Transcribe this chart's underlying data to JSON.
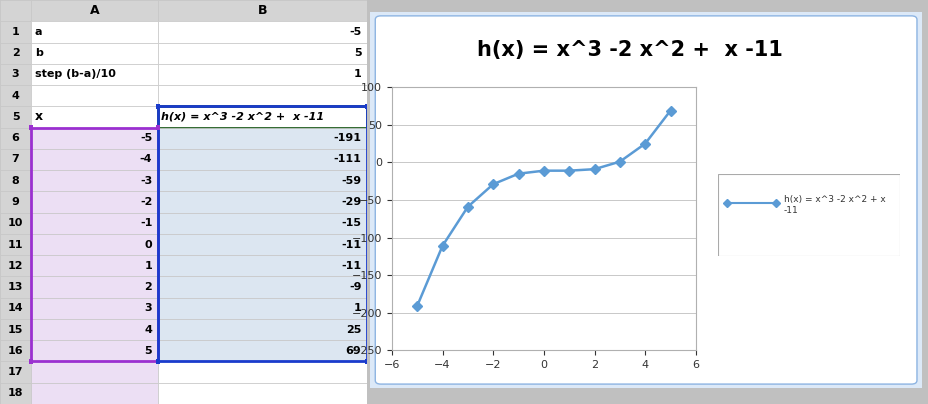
{
  "x_values": [
    -5,
    -4,
    -3,
    -2,
    -1,
    0,
    1,
    2,
    3,
    4,
    5
  ],
  "y_values": [
    -191,
    -111,
    -59,
    -29,
    -15,
    -11,
    -11,
    -9,
    1,
    25,
    69
  ],
  "title": "h(x) = x^3 -2 x^2 +  x -11",
  "legend_label": "h(x) = x^3 -2 x^2 + x\n-11",
  "xlim": [
    -6,
    6
  ],
  "ylim": [
    -250,
    100
  ],
  "yticks": [
    100,
    50,
    0,
    -50,
    -100,
    -150,
    -200,
    -250
  ],
  "xticks": [
    -6,
    -4,
    -2,
    0,
    2,
    4,
    6
  ],
  "line_color": "#5b9bd5",
  "marker_style": "D",
  "marker_size": 5,
  "spreadsheet_rows": [
    [
      "1",
      "a",
      "",
      "-5"
    ],
    [
      "2",
      "b",
      "",
      "5"
    ],
    [
      "3",
      "step (b-a)/10",
      "",
      "1"
    ],
    [
      "4",
      "",
      "",
      ""
    ],
    [
      "5",
      "x",
      "h(x) = x^3 -2 x^2 +  x -11",
      ""
    ],
    [
      "6",
      "",
      "-5",
      "-191"
    ],
    [
      "7",
      "",
      "-4",
      "-111"
    ],
    [
      "8",
      "",
      "-3",
      "-59"
    ],
    [
      "9",
      "",
      "-2",
      "-29"
    ],
    [
      "10",
      "",
      "-1",
      "-15"
    ],
    [
      "11",
      "",
      "0",
      "-11"
    ],
    [
      "12",
      "",
      "1",
      "-11"
    ],
    [
      "13",
      "",
      "2",
      "-9"
    ],
    [
      "14",
      "",
      "3",
      "1"
    ],
    [
      "15",
      "",
      "4",
      "25"
    ],
    [
      "16",
      "",
      "5",
      "69"
    ],
    [
      "17",
      "",
      "",
      ""
    ],
    [
      "18",
      "",
      "",
      ""
    ]
  ],
  "col_header_bg": "#d4d4d4",
  "row_num_bg": "#d4d4d4",
  "white_bg": "#ffffff",
  "col_a_data_bg": "#ecdff4",
  "col_b_data_bg": "#dce6f1",
  "col_b_header_formula_bg": "#ffffff",
  "col_b_header_formula_border": "#1e5c1e",
  "selection_a_color": "#9b30d0",
  "selection_b_color": "#1a3bcc",
  "chart_outer_bg": "#c5d9f1",
  "chart_inner_bg": "#dce9f8",
  "chart_plot_bg": "#ffffff",
  "chart_border_color": "#8db4e2",
  "grid_color": "#c8c8c8",
  "spine_color": "#b0b0b0",
  "fig_bg": "#c0c0c0",
  "excel_grid_color": "#c8c8c8",
  "tick_label_size": 8,
  "title_fontsize": 15
}
